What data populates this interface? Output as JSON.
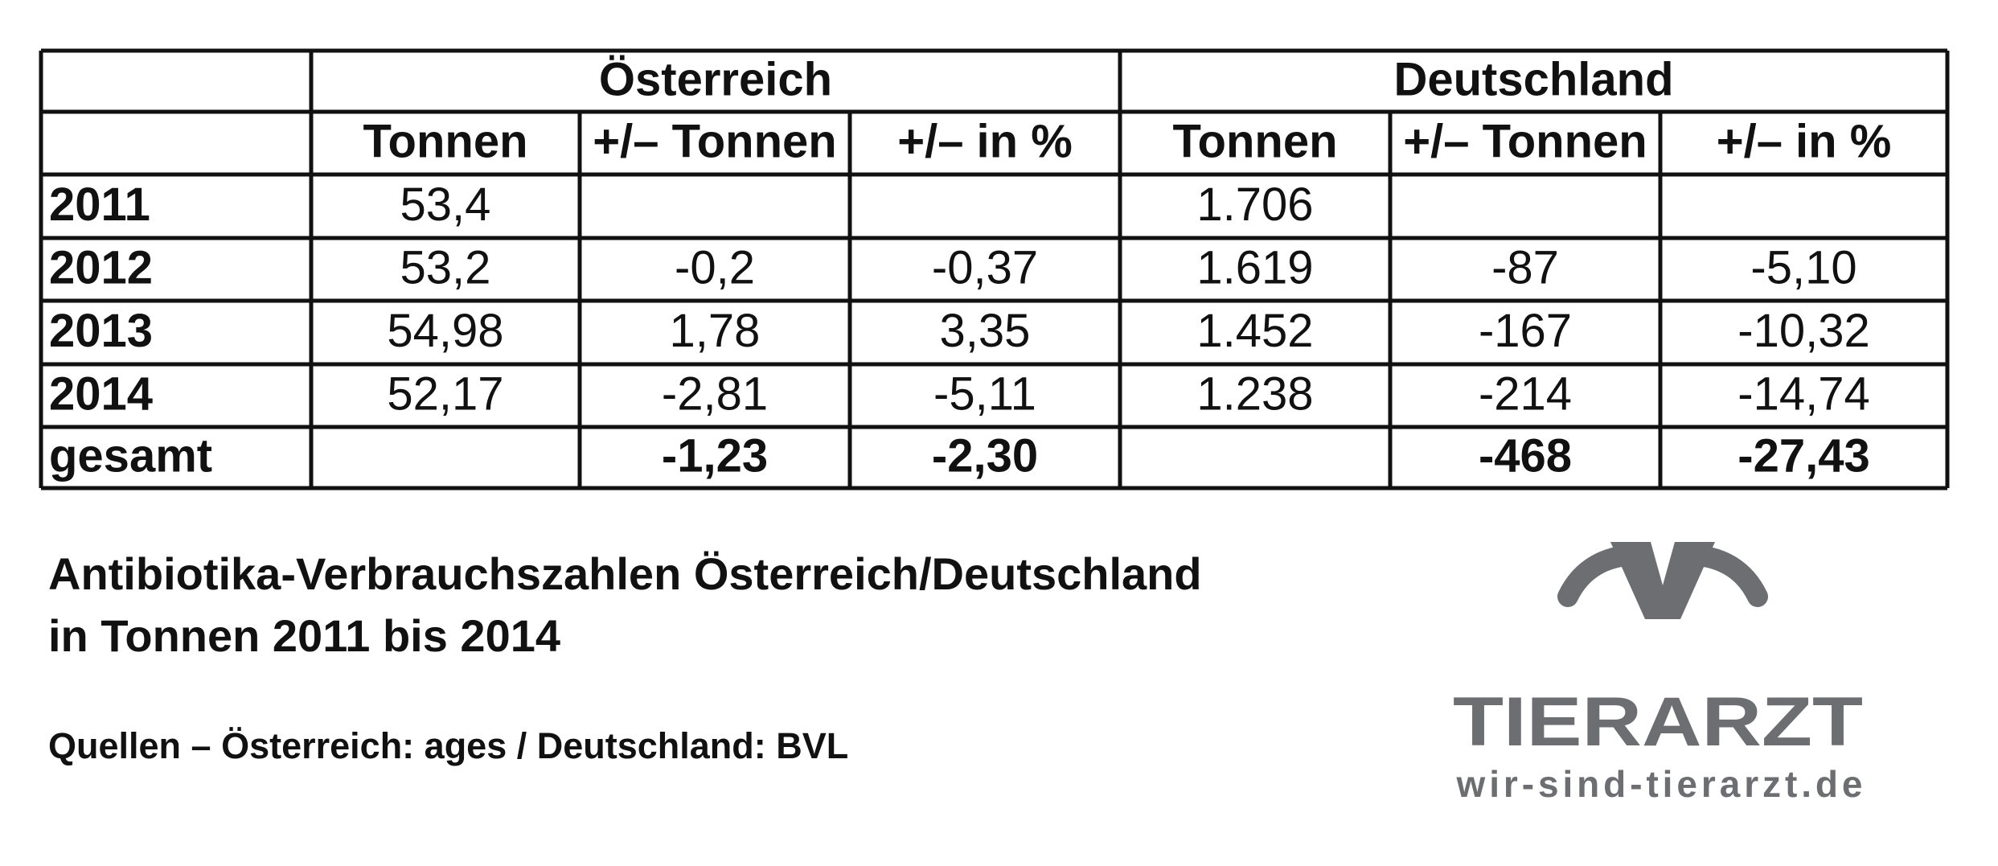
{
  "table": {
    "groups": [
      "Österreich",
      "Deutschland"
    ],
    "columns": [
      "Tonnen",
      "+/– Tonnen",
      "+/– in %",
      "Tonnen",
      "+/– Tonnen",
      "+/– in %"
    ],
    "rows": [
      {
        "label": "2011",
        "cells": [
          "53,4",
          null,
          null,
          "1.706",
          null,
          null
        ]
      },
      {
        "label": "2012",
        "cells": [
          "53,2",
          "-0,2",
          "-0,37",
          "1.619",
          "-87",
          "-5,10"
        ]
      },
      {
        "label": "2013",
        "cells": [
          "54,98",
          "1,78",
          "3,35",
          "1.452",
          "-167",
          "-10,32"
        ]
      },
      {
        "label": "2014",
        "cells": [
          "52,17",
          "-2,81",
          "-5,11",
          "1.238",
          "-214",
          "-14,74"
        ]
      },
      {
        "label": "gesamt",
        "cells": [
          null,
          "-1,23",
          "-2,30",
          null,
          "-468",
          "-27,43"
        ]
      }
    ]
  },
  "caption": [
    "Antibiotika-Verbrauchszahlen Österreich/Deutschland",
    "in Tonnen 2011 bis 2014"
  ],
  "source": "Quellen – Österreich: ages / Deutschland: BVL",
  "logo": {
    "name": "TIERARZT",
    "url": "wir-sind-tierarzt.de"
  }
}
